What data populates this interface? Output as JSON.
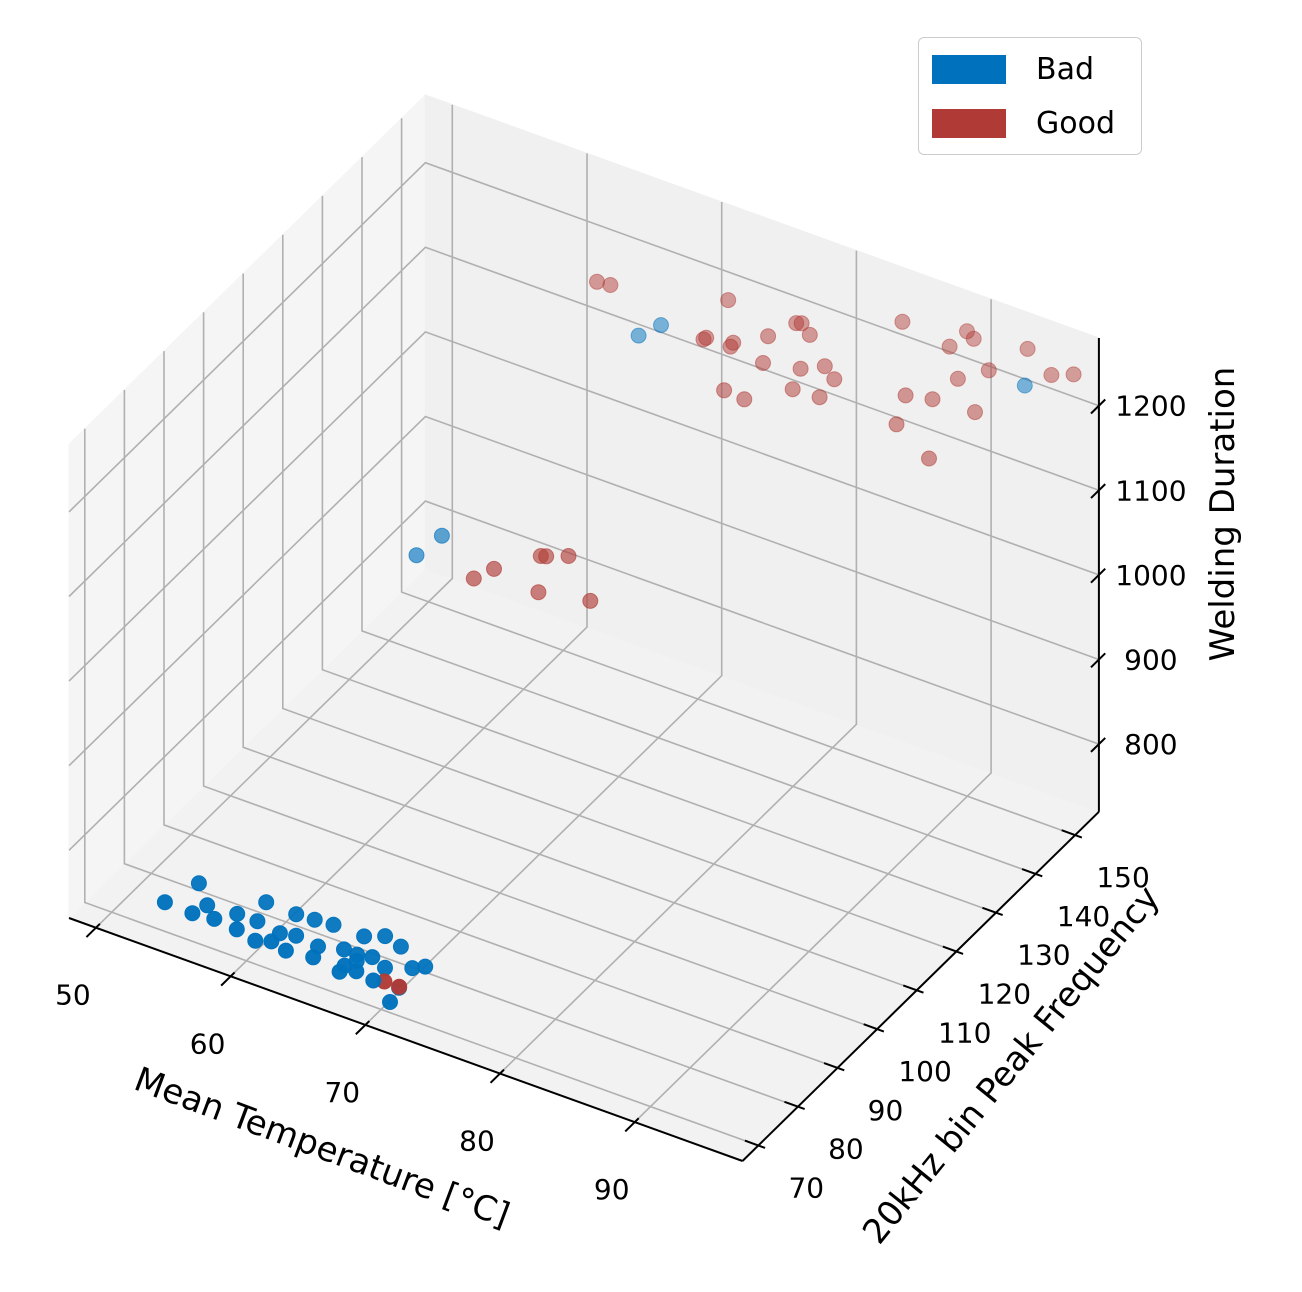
{
  "chart_data": {
    "type": "scatter",
    "projection": "3d",
    "xlabel": "Mean Temperature [°C]",
    "ylabel": "20kHz bin Peak Frequency",
    "zlabel": "Welding Duration",
    "x_ticks": [
      50,
      60,
      70,
      80,
      90
    ],
    "y_ticks": [
      70,
      80,
      90,
      100,
      110,
      120,
      130,
      140,
      150
    ],
    "z_ticks": [
      800,
      900,
      1000,
      1100,
      1200
    ],
    "xlim": [
      48,
      98
    ],
    "ylim": [
      66,
      156
    ],
    "zlim": [
      720,
      1280
    ],
    "grid": true,
    "legend_position": "top-right",
    "series": [
      {
        "name": "Bad",
        "color": "#0072bd",
        "points": [
          [
            53.5,
            71.5,
            745
          ],
          [
            55.6,
            71.3,
            745
          ],
          [
            57.2,
            71.4,
            747
          ],
          [
            58.9,
            71.3,
            745
          ],
          [
            60.3,
            71.2,
            740
          ],
          [
            61.5,
            71.2,
            746
          ],
          [
            62.6,
            71.1,
            742
          ],
          [
            64.6,
            71.2,
            745
          ],
          [
            66.5,
            71.4,
            738
          ],
          [
            66.9,
            71.3,
            748
          ],
          [
            67.8,
            71.2,
            747
          ],
          [
            69.0,
            71.4,
            742
          ],
          [
            70.3,
            71.2,
            725
          ],
          [
            56.2,
            73.0,
            750
          ],
          [
            58.4,
            73.1,
            752
          ],
          [
            59.9,
            73.1,
            752
          ],
          [
            61.6,
            73.0,
            748
          ],
          [
            62.8,
            73.0,
            752
          ],
          [
            64.4,
            73.1,
            748
          ],
          [
            66.3,
            73.2,
            755
          ],
          [
            67.3,
            73.1,
            755
          ],
          [
            68.4,
            73.2,
            758
          ],
          [
            69.4,
            73.0,
            752
          ],
          [
            59.7,
            76.0,
            760
          ],
          [
            61.9,
            76.1,
            758
          ],
          [
            63.3,
            76.0,
            760
          ],
          [
            64.7,
            76.0,
            762
          ],
          [
            67.0,
            75.9,
            762
          ],
          [
            68.5,
            76.1,
            770
          ],
          [
            69.7,
            76.0,
            765
          ],
          [
            55.0,
            75.0,
            760
          ],
          [
            70.9,
            74.8,
            752
          ],
          [
            71.8,
            75.0,
            758
          ],
          [
            70.8,
            71.8,
            742
          ],
          [
            67.3,
            73.0,
            748
          ],
          [
            56.6,
            124.5,
            930
          ],
          [
            57.6,
            127.5,
            945
          ],
          [
            66.8,
            145.9,
            1150
          ],
          [
            67.9,
            147.8,
            1160
          ],
          [
            95.2,
            146.8,
            1250
          ]
        ]
      },
      {
        "name": "Good",
        "color": "#b03b36",
        "points": [
          [
            69.8,
            71.5,
            745
          ],
          [
            70.9,
            71.5,
            745
          ],
          [
            61.0,
            124.0,
            930
          ],
          [
            62.5,
            124.0,
            950
          ],
          [
            65.5,
            125.0,
            935
          ],
          [
            64.8,
            128.0,
            960
          ],
          [
            65.2,
            128.0,
            962
          ],
          [
            67.0,
            127.5,
            975
          ],
          [
            69.5,
            124.5,
            950
          ],
          [
            62.5,
            150.0,
            1170
          ],
          [
            63.5,
            150.0,
            1172
          ],
          [
            71.0,
            148.0,
            1160
          ],
          [
            71.2,
            148.0,
            1163
          ],
          [
            73.0,
            148.0,
            1163
          ],
          [
            74.0,
            143.0,
            1140
          ],
          [
            75.5,
            143.0,
            1138
          ],
          [
            73.5,
            147.0,
            1175
          ],
          [
            75.5,
            149.0,
            1185
          ],
          [
            76.0,
            146.0,
            1170
          ],
          [
            78.5,
            147.0,
            1173
          ],
          [
            80.0,
            148.0,
            1180
          ],
          [
            81.0,
            147.0,
            1175
          ],
          [
            78.5,
            145.0,
            1158
          ],
          [
            80.5,
            145.0,
            1160
          ],
          [
            78.3,
            150.0,
            1198
          ],
          [
            77.0,
            151.0,
            1200
          ],
          [
            77.4,
            151.0,
            1202
          ],
          [
            71.8,
            151.5,
            1195
          ],
          [
            86.5,
            144.0,
            1167
          ],
          [
            86.0,
            148.0,
            1180
          ],
          [
            89.5,
            142.0,
            1153
          ],
          [
            88.0,
            148.0,
            1187
          ],
          [
            89.0,
            151.0,
            1203
          ],
          [
            91.3,
            147.5,
            1193
          ],
          [
            87.8,
            153.0,
            1225
          ],
          [
            88.5,
            155.0,
            1238
          ],
          [
            91.0,
            152.0,
            1220
          ],
          [
            93.0,
            155.0,
            1243
          ],
          [
            95.5,
            152.5,
            1238
          ],
          [
            97.0,
            153.0,
            1245
          ],
          [
            89.0,
            155.0,
            1232
          ],
          [
            84.0,
            154.0,
            1228
          ]
        ]
      }
    ]
  }
}
